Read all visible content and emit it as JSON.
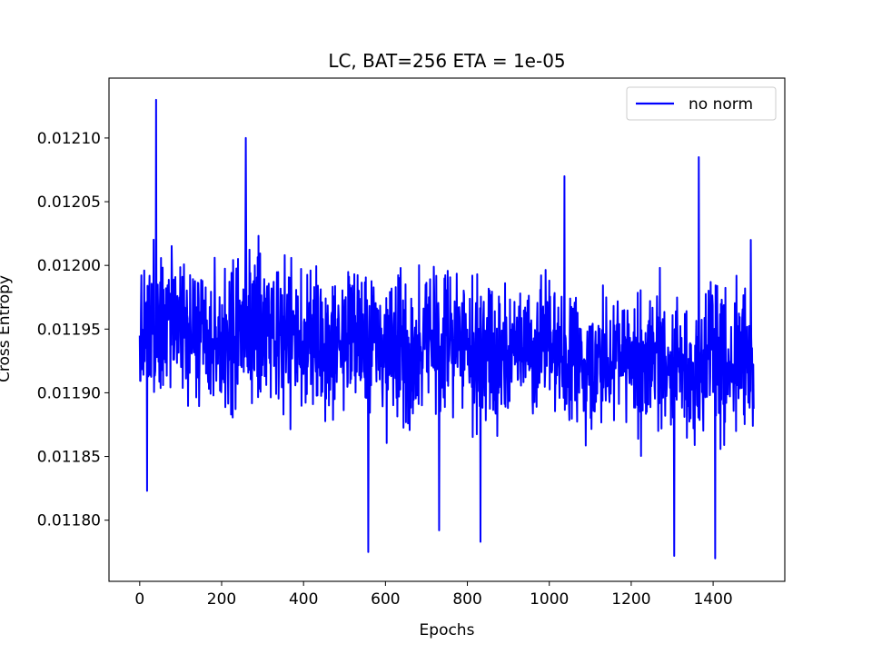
{
  "chart_data": {
    "type": "line",
    "title": "LC, BAT=256 ETA = 1e-05",
    "xlabel": "Epochs",
    "ylabel": "Cross Entropy",
    "xlim": [
      -75,
      1575
    ],
    "ylim": [
      0.011752,
      0.012147
    ],
    "xticks": [
      0,
      200,
      400,
      600,
      800,
      1000,
      1200,
      1400
    ],
    "xtick_labels": [
      "0",
      "200",
      "400",
      "600",
      "800",
      "1000",
      "1200",
      "1400"
    ],
    "yticks": [
      0.0118,
      0.01185,
      0.0119,
      0.01195,
      0.012,
      0.01205,
      0.0121
    ],
    "ytick_labels": [
      "0.01180",
      "0.01185",
      "0.01190",
      "0.01195",
      "0.01200",
      "0.01205",
      "0.01210"
    ],
    "grid": false,
    "legend_position": "upper right",
    "series": [
      {
        "name": "no norm",
        "color": "#0000ff",
        "n_points": 1500,
        "mean_start": 0.011953,
        "mean_end": 0.011918,
        "noise_halfwidth": 6e-05,
        "spikes": [
          {
            "x": 40,
            "y": 0.01213
          },
          {
            "x": 18,
            "y": 0.011823
          },
          {
            "x": 259,
            "y": 0.0121
          },
          {
            "x": 558,
            "y": 0.011775
          },
          {
            "x": 731,
            "y": 0.011792
          },
          {
            "x": 832,
            "y": 0.011783
          },
          {
            "x": 1037,
            "y": 0.01207
          },
          {
            "x": 1305,
            "y": 0.011772
          },
          {
            "x": 1365,
            "y": 0.012085
          },
          {
            "x": 1405,
            "y": 0.01177
          },
          {
            "x": 1492,
            "y": 0.01202
          }
        ]
      }
    ]
  }
}
